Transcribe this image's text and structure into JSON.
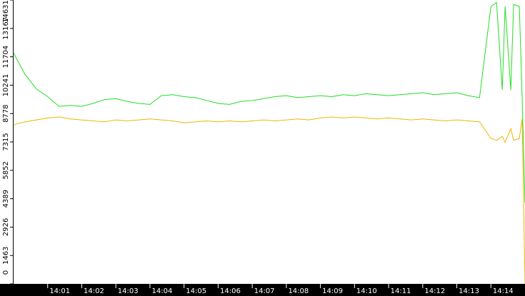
{
  "chart_data": {
    "type": "line",
    "x": [
      "14:00:00",
      "14:00:20",
      "14:00:40",
      "14:01:00",
      "14:01:20",
      "14:01:40",
      "14:02:00",
      "14:02:20",
      "14:02:40",
      "14:03:00",
      "14:03:20",
      "14:03:40",
      "14:04:00",
      "14:04:20",
      "14:04:40",
      "14:05:00",
      "14:05:20",
      "14:05:40",
      "14:06:00",
      "14:06:20",
      "14:06:40",
      "14:07:00",
      "14:07:20",
      "14:07:40",
      "14:08:00",
      "14:08:20",
      "14:08:40",
      "14:09:00",
      "14:09:20",
      "14:09:40",
      "14:10:00",
      "14:10:20",
      "14:10:40",
      "14:11:00",
      "14:11:20",
      "14:11:40",
      "14:12:00",
      "14:12:20",
      "14:12:40",
      "14:13:00",
      "14:13:20",
      "14:13:40",
      "14:14:00",
      "14:14:10",
      "14:14:20",
      "14:14:25",
      "14:14:35",
      "14:14:40",
      "14:14:50",
      "14:14:55",
      "14:15:00"
    ],
    "series": [
      {
        "name": "green",
        "color": "#22dd22",
        "values": [
          11900,
          10800,
          10050,
          9650,
          9150,
          9200,
          9150,
          9300,
          9500,
          9550,
          9400,
          9300,
          9250,
          9700,
          9750,
          9650,
          9600,
          9450,
          9300,
          9250,
          9400,
          9450,
          9550,
          9650,
          9700,
          9600,
          9650,
          9700,
          9650,
          9750,
          9700,
          9800,
          9750,
          9700,
          9750,
          9800,
          9850,
          9750,
          9800,
          9850,
          9700,
          9600,
          14300,
          14500,
          10000,
          14300,
          10000,
          14400,
          14300,
          9600,
          4200
        ]
      },
      {
        "name": "orange",
        "color": "#f0b400",
        "values": [
          8200,
          8350,
          8450,
          8550,
          8600,
          8500,
          8450,
          8400,
          8350,
          8450,
          8400,
          8450,
          8500,
          8450,
          8400,
          8300,
          8350,
          8400,
          8350,
          8400,
          8350,
          8400,
          8450,
          8400,
          8450,
          8500,
          8450,
          8550,
          8600,
          8550,
          8600,
          8550,
          8500,
          8550,
          8500,
          8450,
          8500,
          8450,
          8400,
          8450,
          8400,
          8350,
          7500,
          7400,
          7600,
          7300,
          8000,
          7400,
          7500,
          8500,
          0
        ]
      }
    ],
    "xlim": [
      "14:00:00",
      "14:15:00"
    ],
    "xticks": [
      "14:01",
      "14:02",
      "14:03",
      "14:04",
      "14:05",
      "14:06",
      "14:07",
      "14:08",
      "14:09",
      "14:10",
      "14:11",
      "14:12",
      "14:13",
      "14:14"
    ],
    "ylim": [
      0,
      14631
    ],
    "yticks": [
      0,
      1463,
      2926,
      4389,
      5852,
      7315,
      8778,
      10241,
      11704,
      13167,
      14631
    ]
  }
}
